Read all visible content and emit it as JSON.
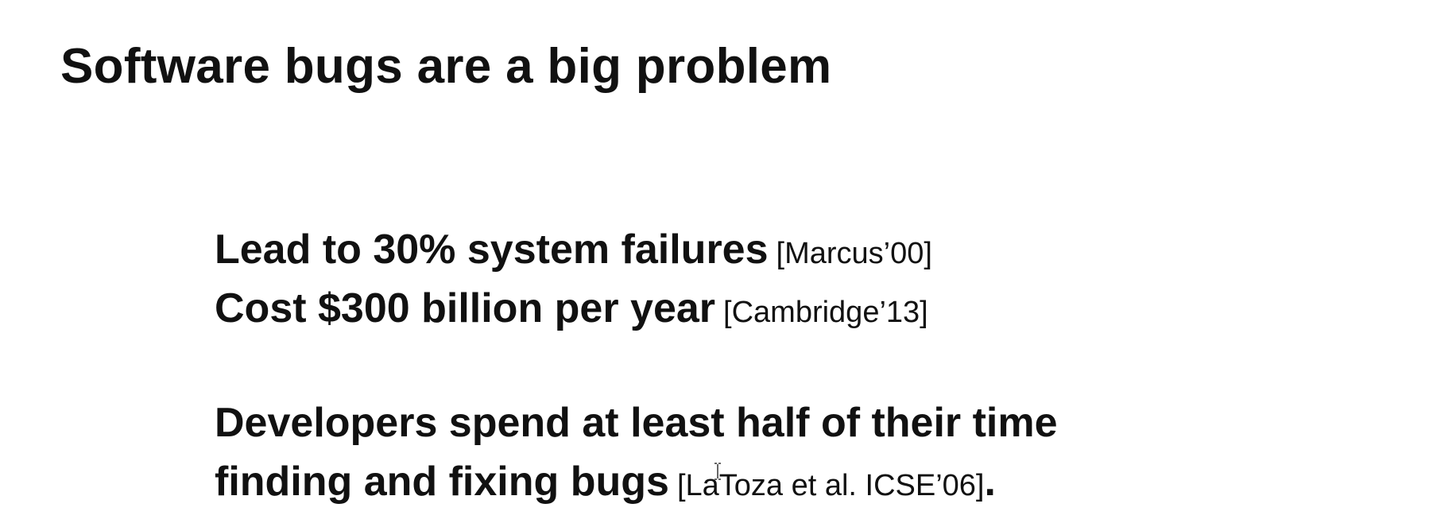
{
  "slide": {
    "title": "Software bugs are a big problem",
    "points": [
      {
        "text": "Lead to 30% system failures",
        "citation": "[Marcus’00]"
      },
      {
        "text": "Cost $300 billion per year",
        "citation": "[Cambridge’13]"
      }
    ],
    "developer_point": {
      "line1": "Developers spend at least half of their time",
      "line2": "finding and fixing bugs",
      "citation": "[LaToza et al. ICSE’06]",
      "trailing": "."
    }
  }
}
